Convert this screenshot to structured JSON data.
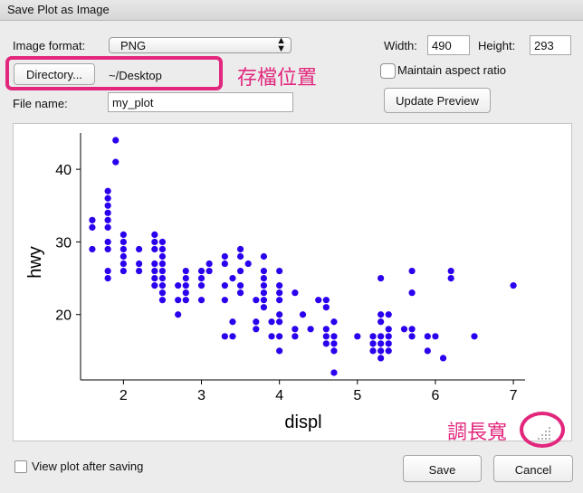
{
  "window": {
    "title": "Save Plot as Image"
  },
  "form": {
    "image_format_label": "Image format:",
    "image_format_value": "PNG",
    "width_label": "Width:",
    "width_value": "490",
    "height_label": "Height:",
    "height_value": "293",
    "directory_button": "Directory...",
    "directory_value": "~/Desktop",
    "maintain_aspect_label": "Maintain aspect ratio",
    "maintain_aspect_checked": false,
    "file_name_label": "File name:",
    "file_name_value": "my_plot",
    "update_preview_button": "Update Preview",
    "view_after_saving_label": "View plot after saving",
    "view_after_saving_checked": false,
    "save_button": "Save",
    "cancel_button": "Cancel"
  },
  "annotations": {
    "directory_note": "存檔位置",
    "resize_note": "調長寬",
    "highlight_color": "#e2277d"
  },
  "chart_data": {
    "type": "scatter",
    "xlabel": "displ",
    "ylabel": "hwy",
    "x_ticks": [
      2,
      3,
      4,
      5,
      6,
      7
    ],
    "y_ticks": [
      20,
      30,
      40
    ],
    "xlim": [
      1.45,
      7.15
    ],
    "ylim": [
      11,
      45
    ],
    "point_color": "#2a00ee",
    "points": [
      [
        1.6,
        33
      ],
      [
        1.6,
        32
      ],
      [
        1.6,
        29
      ],
      [
        1.8,
        37
      ],
      [
        1.8,
        36
      ],
      [
        1.8,
        35
      ],
      [
        1.8,
        34
      ],
      [
        1.8,
        33
      ],
      [
        1.8,
        32
      ],
      [
        1.8,
        30
      ],
      [
        1.8,
        29
      ],
      [
        1.8,
        26
      ],
      [
        1.8,
        25
      ],
      [
        1.9,
        44
      ],
      [
        1.9,
        41
      ],
      [
        2.0,
        31
      ],
      [
        2.0,
        30
      ],
      [
        2.0,
        29
      ],
      [
        2.0,
        28
      ],
      [
        2.0,
        27
      ],
      [
        2.0,
        26
      ],
      [
        2.2,
        29
      ],
      [
        2.2,
        27
      ],
      [
        2.2,
        26
      ],
      [
        2.4,
        31
      ],
      [
        2.4,
        30
      ],
      [
        2.4,
        29
      ],
      [
        2.4,
        27
      ],
      [
        2.4,
        26
      ],
      [
        2.4,
        25
      ],
      [
        2.4,
        24
      ],
      [
        2.5,
        30
      ],
      [
        2.5,
        29
      ],
      [
        2.5,
        28
      ],
      [
        2.5,
        27
      ],
      [
        2.5,
        26
      ],
      [
        2.5,
        25
      ],
      [
        2.5,
        24
      ],
      [
        2.5,
        23
      ],
      [
        2.5,
        22
      ],
      [
        2.7,
        24
      ],
      [
        2.7,
        22
      ],
      [
        2.7,
        20
      ],
      [
        2.8,
        26
      ],
      [
        2.8,
        25
      ],
      [
        2.8,
        24
      ],
      [
        2.8,
        23
      ],
      [
        2.8,
        22
      ],
      [
        3.0,
        26
      ],
      [
        3.0,
        25
      ],
      [
        3.0,
        24
      ],
      [
        3.0,
        22
      ],
      [
        3.1,
        27
      ],
      [
        3.1,
        26
      ],
      [
        3.3,
        28
      ],
      [
        3.3,
        27
      ],
      [
        3.3,
        24
      ],
      [
        3.3,
        22
      ],
      [
        3.3,
        17
      ],
      [
        3.4,
        25
      ],
      [
        3.4,
        19
      ],
      [
        3.4,
        17
      ],
      [
        3.5,
        29
      ],
      [
        3.5,
        28
      ],
      [
        3.5,
        26
      ],
      [
        3.5,
        24
      ],
      [
        3.5,
        23
      ],
      [
        3.6,
        27
      ],
      [
        3.7,
        22
      ],
      [
        3.7,
        19
      ],
      [
        3.7,
        18
      ],
      [
        3.8,
        28
      ],
      [
        3.8,
        26
      ],
      [
        3.8,
        25
      ],
      [
        3.8,
        24
      ],
      [
        3.8,
        23
      ],
      [
        3.8,
        22
      ],
      [
        3.8,
        21
      ],
      [
        3.9,
        19
      ],
      [
        3.9,
        17
      ],
      [
        4.0,
        26
      ],
      [
        4.0,
        24
      ],
      [
        4.0,
        23
      ],
      [
        4.0,
        22
      ],
      [
        4.0,
        20
      ],
      [
        4.0,
        19
      ],
      [
        4.0,
        17
      ],
      [
        4.0,
        15
      ],
      [
        4.2,
        23
      ],
      [
        4.2,
        18
      ],
      [
        4.2,
        17
      ],
      [
        4.3,
        20
      ],
      [
        4.4,
        18
      ],
      [
        4.5,
        22
      ],
      [
        4.6,
        22
      ],
      [
        4.6,
        21
      ],
      [
        4.6,
        18
      ],
      [
        4.6,
        17
      ],
      [
        4.6,
        16
      ],
      [
        4.7,
        19
      ],
      [
        4.7,
        17
      ],
      [
        4.7,
        16
      ],
      [
        4.7,
        15
      ],
      [
        4.7,
        12
      ],
      [
        5.0,
        17
      ],
      [
        5.2,
        17
      ],
      [
        5.2,
        16
      ],
      [
        5.2,
        15
      ],
      [
        5.3,
        25
      ],
      [
        5.3,
        20
      ],
      [
        5.3,
        19
      ],
      [
        5.3,
        17
      ],
      [
        5.3,
        16
      ],
      [
        5.3,
        15
      ],
      [
        5.3,
        14
      ],
      [
        5.4,
        20
      ],
      [
        5.4,
        18
      ],
      [
        5.4,
        17
      ],
      [
        5.4,
        16
      ],
      [
        5.4,
        15
      ],
      [
        5.6,
        18
      ],
      [
        5.7,
        26
      ],
      [
        5.7,
        23
      ],
      [
        5.7,
        18
      ],
      [
        5.7,
        17
      ],
      [
        5.9,
        17
      ],
      [
        5.9,
        15
      ],
      [
        6.0,
        17
      ],
      [
        6.1,
        14
      ],
      [
        6.2,
        26
      ],
      [
        6.2,
        25
      ],
      [
        6.5,
        17
      ],
      [
        7.0,
        24
      ]
    ]
  }
}
